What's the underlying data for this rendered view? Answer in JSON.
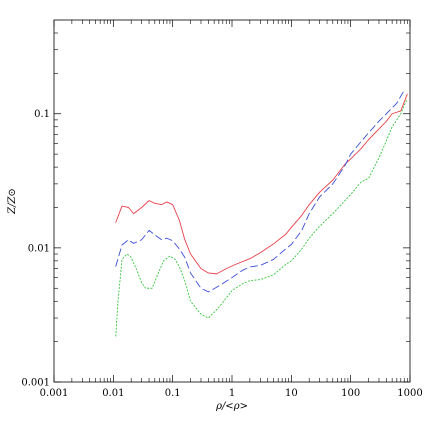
{
  "chart_data": {
    "type": "line",
    "title": "",
    "xlabel": "ρ/<ρ>",
    "ylabel": "Z/Z⊙",
    "xscale": "log",
    "yscale": "log",
    "xlim": [
      0.001,
      1000
    ],
    "ylim": [
      0.001,
      0.5
    ],
    "x_ticks": [
      {
        "value": 0.001,
        "label": "0.001"
      },
      {
        "value": 0.01,
        "label": "0.01"
      },
      {
        "value": 0.1,
        "label": "0.1"
      },
      {
        "value": 1,
        "label": "1"
      },
      {
        "value": 10,
        "label": "10"
      },
      {
        "value": 100,
        "label": "100"
      },
      {
        "value": 1000,
        "label": "1000"
      }
    ],
    "y_ticks": [
      {
        "value": 0.001,
        "label": "0.001"
      },
      {
        "value": 0.01,
        "label": "0.01"
      },
      {
        "value": 0.1,
        "label": "0.1"
      }
    ],
    "grid": false,
    "legend": "none",
    "series": [
      {
        "color": "#e8414a",
        "style": "solid",
        "points": [
          [
            0.011,
            0.0155
          ],
          [
            0.014,
            0.0205
          ],
          [
            0.018,
            0.02
          ],
          [
            0.022,
            0.018
          ],
          [
            0.03,
            0.02
          ],
          [
            0.04,
            0.0225
          ],
          [
            0.05,
            0.0215
          ],
          [
            0.065,
            0.021
          ],
          [
            0.08,
            0.022
          ],
          [
            0.1,
            0.021
          ],
          [
            0.13,
            0.016
          ],
          [
            0.16,
            0.0115
          ],
          [
            0.2,
            0.009
          ],
          [
            0.3,
            0.007
          ],
          [
            0.4,
            0.0065
          ],
          [
            0.55,
            0.0064
          ],
          [
            0.8,
            0.007
          ],
          [
            1.2,
            0.0076
          ],
          [
            2,
            0.0083
          ],
          [
            3,
            0.0092
          ],
          [
            5,
            0.0107
          ],
          [
            8,
            0.0126
          ],
          [
            10,
            0.0142
          ],
          [
            15,
            0.0175
          ],
          [
            20,
            0.021
          ],
          [
            30,
            0.026
          ],
          [
            50,
            0.032
          ],
          [
            80,
            0.042
          ],
          [
            100,
            0.046
          ],
          [
            150,
            0.055
          ],
          [
            200,
            0.064
          ],
          [
            300,
            0.077
          ],
          [
            400,
            0.088
          ],
          [
            500,
            0.1
          ],
          [
            700,
            0.105
          ],
          [
            900,
            0.14
          ]
        ]
      },
      {
        "color": "#3a4fd9",
        "style": "dashed",
        "points": [
          [
            0.011,
            0.0073
          ],
          [
            0.014,
            0.0105
          ],
          [
            0.018,
            0.0115
          ],
          [
            0.022,
            0.0108
          ],
          [
            0.03,
            0.0115
          ],
          [
            0.04,
            0.0135
          ],
          [
            0.05,
            0.0125
          ],
          [
            0.065,
            0.0115
          ],
          [
            0.08,
            0.0118
          ],
          [
            0.1,
            0.0113
          ],
          [
            0.13,
            0.0098
          ],
          [
            0.16,
            0.0085
          ],
          [
            0.2,
            0.0065
          ],
          [
            0.3,
            0.005
          ],
          [
            0.4,
            0.0047
          ],
          [
            0.6,
            0.0052
          ],
          [
            1,
            0.006
          ],
          [
            1.5,
            0.0068
          ],
          [
            2,
            0.0072
          ],
          [
            3,
            0.0074
          ],
          [
            5,
            0.0082
          ],
          [
            8,
            0.0098
          ],
          [
            10,
            0.0106
          ],
          [
            15,
            0.0135
          ],
          [
            20,
            0.018
          ],
          [
            30,
            0.024
          ],
          [
            50,
            0.03
          ],
          [
            80,
            0.041
          ],
          [
            100,
            0.05
          ],
          [
            150,
            0.062
          ],
          [
            200,
            0.072
          ],
          [
            300,
            0.088
          ],
          [
            400,
            0.1
          ],
          [
            600,
            0.12
          ],
          [
            800,
            0.15
          ]
        ]
      },
      {
        "color": "#2fc437",
        "style": "dotted",
        "points": [
          [
            0.011,
            0.0022
          ],
          [
            0.012,
            0.004
          ],
          [
            0.014,
            0.0082
          ],
          [
            0.017,
            0.009
          ],
          [
            0.02,
            0.0085
          ],
          [
            0.025,
            0.0068
          ],
          [
            0.03,
            0.0055
          ],
          [
            0.035,
            0.005
          ],
          [
            0.045,
            0.005
          ],
          [
            0.055,
            0.0062
          ],
          [
            0.07,
            0.008
          ],
          [
            0.09,
            0.0087
          ],
          [
            0.11,
            0.0082
          ],
          [
            0.13,
            0.0072
          ],
          [
            0.16,
            0.0057
          ],
          [
            0.2,
            0.004
          ],
          [
            0.3,
            0.0032
          ],
          [
            0.4,
            0.003
          ],
          [
            0.6,
            0.0036
          ],
          [
            1,
            0.0048
          ],
          [
            1.5,
            0.0054
          ],
          [
            2,
            0.0057
          ],
          [
            3,
            0.0058
          ],
          [
            5,
            0.0063
          ],
          [
            8,
            0.0075
          ],
          [
            10,
            0.008
          ],
          [
            15,
            0.0098
          ],
          [
            20,
            0.0118
          ],
          [
            30,
            0.0145
          ],
          [
            50,
            0.018
          ],
          [
            80,
            0.0225
          ],
          [
            100,
            0.025
          ],
          [
            150,
            0.031
          ],
          [
            200,
            0.033
          ],
          [
            300,
            0.047
          ],
          [
            400,
            0.063
          ],
          [
            500,
            0.08
          ],
          [
            700,
            0.1
          ],
          [
            900,
            0.13
          ]
        ]
      }
    ]
  }
}
